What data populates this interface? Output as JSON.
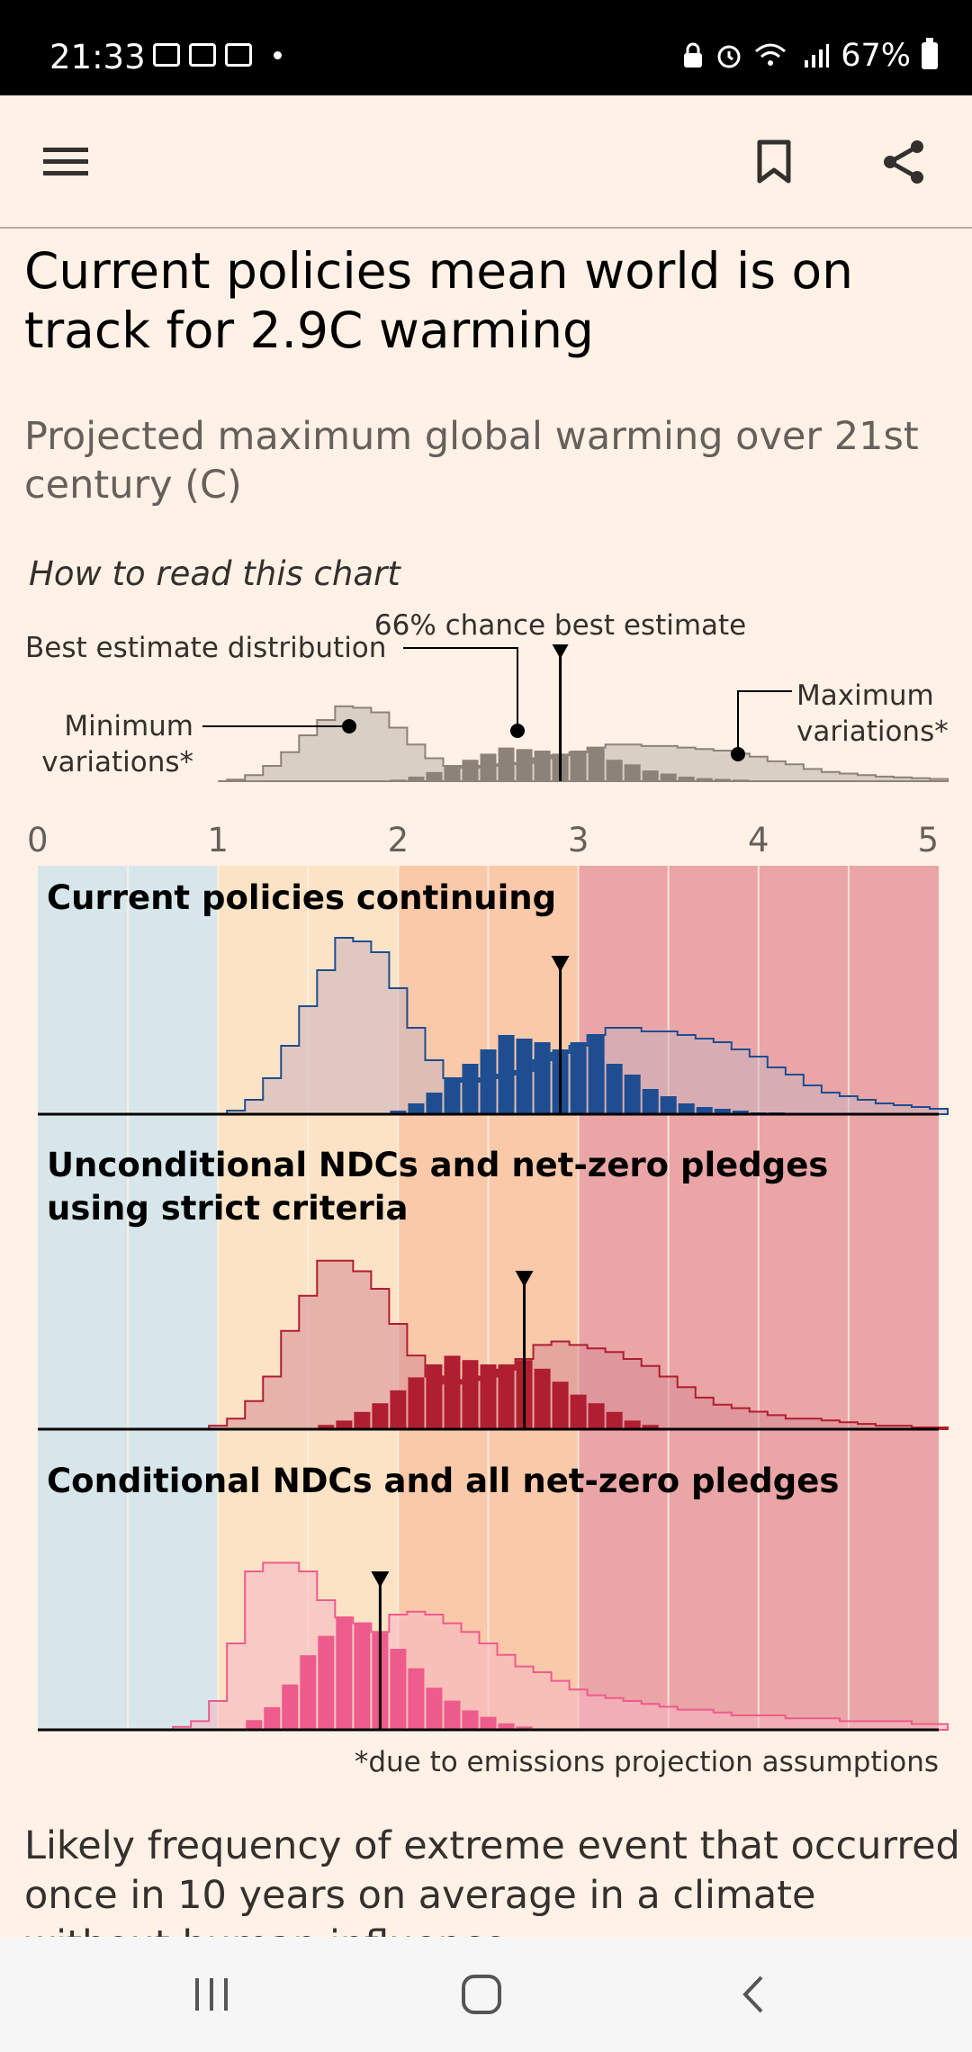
{
  "status_bar": {
    "time": "21:33",
    "battery": "67%"
  },
  "app_bar": {
    "menu_icon": "hamburger-menu-icon",
    "bookmark_icon": "bookmark-icon",
    "share_icon": "share-icon"
  },
  "article": {
    "headline": "Current policies mean world is on track for 2.9C warming",
    "subtitle": "Projected maximum global warming over 21st century (C)",
    "how_to_read": "How to read this chart",
    "legend": {
      "best_estimate_distribution": "Best estimate distribution",
      "chance_best_estimate": "66% chance best estimate",
      "minimum_variations": "Minimum variations*",
      "maximum_variations": "Maximum variations*"
    },
    "footnote": "*due to emissions projection assumptions",
    "body_text": "Likely frequency of extreme event that occurred once in 10 years on average in a climate without human influence"
  },
  "chart_data": {
    "type": "histogram",
    "x_ticks": [
      "0",
      "1",
      "2",
      "3",
      "4",
      "5"
    ],
    "xlim": [
      0,
      5
    ],
    "background_bands": [
      {
        "from": 0,
        "to": 1,
        "color": "#D7E6EA"
      },
      {
        "from": 1,
        "to": 2,
        "color": "#FCE3C5"
      },
      {
        "from": 2,
        "to": 3,
        "color": "#F9C9A9"
      },
      {
        "from": 3,
        "to": 5,
        "color": "#EAA5A6"
      }
    ],
    "panels": [
      {
        "title": "Current policies continuing",
        "best_estimate": 2.9,
        "color": "#1E4E91",
        "variation_color": "#C9B3BE",
        "best_x": [
          2.0,
          2.1,
          2.2,
          2.3,
          2.4,
          2.5,
          2.6,
          2.7,
          2.8,
          2.9,
          3.0,
          3.1,
          3.2,
          3.3,
          3.4,
          3.5,
          3.6,
          3.7,
          3.8,
          3.9,
          4.0,
          4.1
        ],
        "best_y": [
          2,
          6,
          12,
          20,
          28,
          36,
          44,
          42,
          40,
          36,
          40,
          44,
          28,
          22,
          14,
          10,
          6,
          4,
          3,
          2,
          1,
          1
        ],
        "var_x": [
          1.1,
          1.2,
          1.3,
          1.4,
          1.5,
          1.6,
          1.7,
          1.8,
          1.9,
          2.0,
          2.1,
          2.2,
          2.3,
          2.4,
          2.5,
          2.6,
          2.7,
          2.8,
          2.9,
          3.0,
          3.1,
          3.2,
          3.3,
          3.4,
          3.5,
          3.6,
          3.7,
          3.8,
          3.9,
          4.0,
          4.1,
          4.2,
          4.3,
          4.4,
          4.5,
          4.6,
          4.7,
          4.8,
          4.9,
          5.0
        ],
        "var_y": [
          2,
          8,
          20,
          38,
          60,
          80,
          98,
          96,
          90,
          70,
          48,
          30,
          20,
          18,
          20,
          22,
          24,
          30,
          34,
          38,
          44,
          48,
          48,
          46,
          46,
          44,
          42,
          40,
          36,
          32,
          26,
          22,
          16,
          12,
          10,
          8,
          6,
          5,
          4,
          3
        ]
      },
      {
        "title": "Unconditional NDCs and net-zero pledges using strict criteria",
        "best_estimate": 2.7,
        "color": "#B01E31",
        "variation_color": "#D58A94",
        "best_x": [
          1.6,
          1.7,
          1.8,
          1.9,
          2.0,
          2.1,
          2.2,
          2.3,
          2.4,
          2.5,
          2.6,
          2.7,
          2.8,
          2.9,
          3.0,
          3.1,
          3.2,
          3.3,
          3.4
        ],
        "best_y": [
          2,
          4,
          8,
          12,
          18,
          24,
          30,
          34,
          32,
          30,
          30,
          32,
          28,
          22,
          16,
          12,
          8,
          4,
          2
        ],
        "var_x": [
          1.0,
          1.1,
          1.2,
          1.3,
          1.4,
          1.5,
          1.6,
          1.7,
          1.8,
          1.9,
          2.0,
          2.1,
          2.2,
          2.3,
          2.4,
          2.5,
          2.6,
          2.7,
          2.8,
          2.9,
          3.0,
          3.1,
          3.2,
          3.3,
          3.4,
          3.5,
          3.6,
          3.7,
          3.8,
          3.9,
          4.0,
          4.1,
          4.2,
          4.3,
          4.4,
          4.5,
          4.6,
          4.7,
          4.8,
          4.9,
          5.0
        ],
        "var_y": [
          2,
          6,
          16,
          30,
          56,
          76,
          96,
          96,
          90,
          80,
          60,
          42,
          30,
          26,
          28,
          30,
          34,
          40,
          48,
          50,
          48,
          46,
          44,
          40,
          36,
          30,
          24,
          18,
          14,
          12,
          10,
          8,
          6,
          6,
          5,
          4,
          3,
          2,
          2,
          1,
          1
        ]
      },
      {
        "title": "Conditional NDCs and all net-zero pledges",
        "best_estimate": 1.9,
        "color": "#EE5B8D",
        "variation_color": "#F5B7C3",
        "best_x": [
          1.2,
          1.3,
          1.4,
          1.5,
          1.6,
          1.7,
          1.8,
          1.9,
          2.0,
          2.1,
          2.2,
          2.3,
          2.4,
          2.5,
          2.6,
          2.7
        ],
        "best_y": [
          6,
          14,
          28,
          46,
          58,
          70,
          66,
          60,
          50,
          38,
          26,
          18,
          12,
          8,
          4,
          2
        ],
        "var_x": [
          0.8,
          0.9,
          1.0,
          1.1,
          1.2,
          1.3,
          1.4,
          1.5,
          1.6,
          1.7,
          1.8,
          1.9,
          2.0,
          2.1,
          2.2,
          2.3,
          2.4,
          2.5,
          2.6,
          2.7,
          2.8,
          2.9,
          3.0,
          3.1,
          3.2,
          3.3,
          3.4,
          3.5,
          3.6,
          3.7,
          3.8,
          3.9,
          4.0,
          4.1,
          4.2,
          4.3,
          4.4,
          4.5,
          4.6,
          4.7,
          4.8,
          4.9,
          5.0
        ],
        "var_y": [
          2,
          6,
          20,
          60,
          110,
          116,
          116,
          110,
          90,
          78,
          74,
          68,
          80,
          82,
          80,
          74,
          68,
          60,
          52,
          44,
          40,
          34,
          28,
          24,
          22,
          20,
          18,
          16,
          14,
          14,
          12,
          10,
          10,
          10,
          8,
          8,
          8,
          6,
          6,
          6,
          6,
          4,
          4
        ]
      }
    ]
  },
  "nav_bar": {
    "recents_icon": "recents-icon",
    "home_icon": "home-icon",
    "back_icon": "back-icon"
  }
}
